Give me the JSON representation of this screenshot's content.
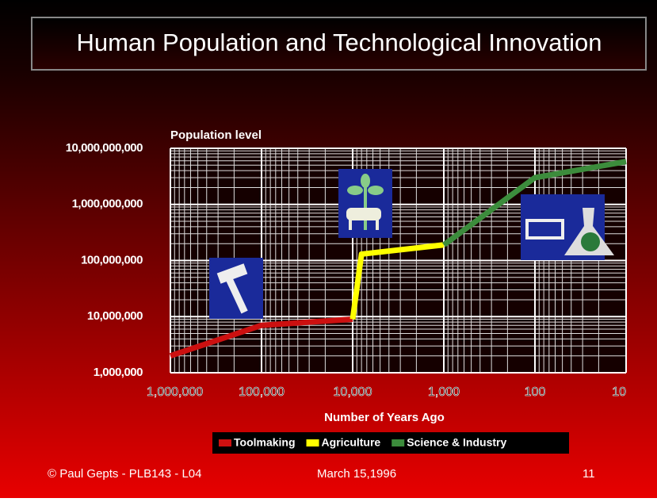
{
  "chart_data": {
    "type": "line",
    "title": "Human Population and Technological Innovation",
    "y_label": "Population level",
    "x_label": "Number of Years Ago",
    "log_x": true,
    "log_y": true,
    "grid": true,
    "minor_grid": true,
    "xlim": [
      1000000,
      10
    ],
    "xticks": [
      {
        "value": 1000000,
        "label": "1,000,000"
      },
      {
        "value": 100000,
        "label": "100,000"
      },
      {
        "value": 10000,
        "label": "10,000"
      },
      {
        "value": 1000,
        "label": "1,000"
      },
      100,
      10
    ],
    "ylim": [
      1000000,
      10000000000
    ],
    "yticks": [
      {
        "value": 1000000,
        "label": "1,000,000"
      },
      {
        "value": 10000000,
        "label": "10,000,000"
      },
      {
        "value": 100000000,
        "label": "100,000,000"
      },
      {
        "value": 1000000000,
        "label": "1,000,000,000"
      },
      {
        "value": 10000000000,
        "label": "10,000,000,000"
      }
    ],
    "series": [
      {
        "name": "Toolmaking",
        "color": "#cc1010",
        "x": [
          1000000,
          100000,
          10000
        ],
        "values": [
          2000000,
          7000000,
          9000000
        ]
      },
      {
        "name": "Agriculture",
        "color": "#ffff00",
        "x": [
          10000,
          8000,
          1000
        ],
        "values": [
          9000000,
          130000000,
          190000000
        ]
      },
      {
        "name": "Science & Industry",
        "color": "#3c8c3c",
        "x": [
          1000,
          100,
          10
        ],
        "values": [
          190000000,
          3000000000,
          5800000000
        ]
      }
    ]
  },
  "footer": {
    "author": "© Paul Gepts - PLB143 - L04",
    "date": "March 15,1996",
    "page": "11"
  }
}
